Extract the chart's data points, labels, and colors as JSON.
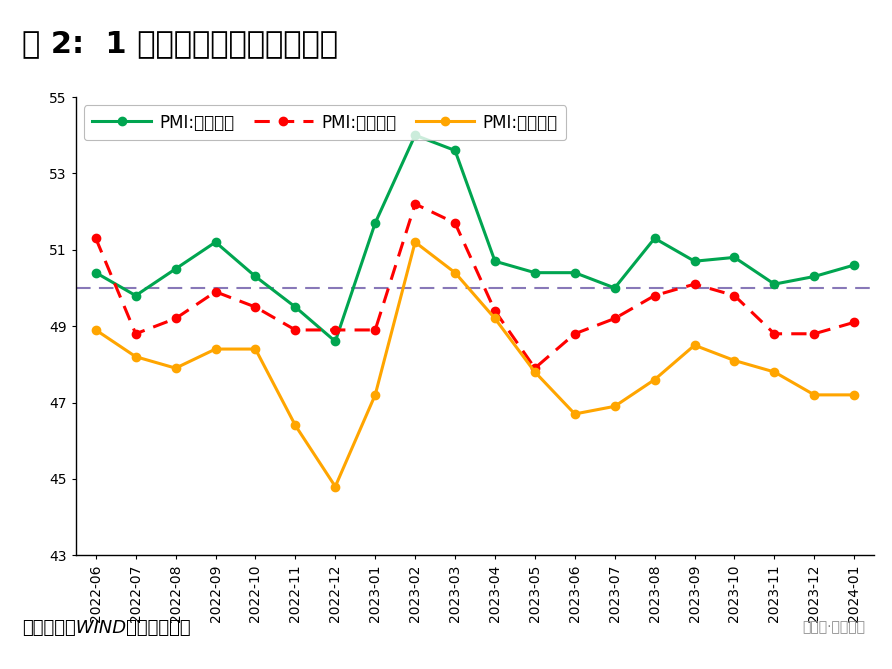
{
  "title": "图 2:  1 月大中小型企业延续分化",
  "source_text": "资料来源：WIND，财信研究院",
  "watermark": "公众号·明察宏观",
  "legend_large": "PMI:大型企业",
  "legend_medium": "PMI:中型企业",
  "legend_small": "PMI:小型企业",
  "x_labels": [
    "2022-06",
    "2022-07",
    "2022-08",
    "2022-09",
    "2022-10",
    "2022-11",
    "2022-12",
    "2023-01",
    "2023-02",
    "2023-03",
    "2023-04",
    "2023-05",
    "2023-06",
    "2023-07",
    "2023-08",
    "2023-09",
    "2023-10",
    "2023-11",
    "2023-12",
    "2024-01"
  ],
  "large_pmi": [
    50.4,
    49.8,
    50.5,
    51.2,
    50.3,
    49.5,
    48.6,
    51.7,
    54.0,
    53.6,
    50.7,
    50.4,
    50.4,
    50.0,
    51.3,
    50.7,
    50.8,
    50.1,
    50.3,
    50.6
  ],
  "medium_pmi": [
    51.3,
    48.8,
    49.2,
    49.9,
    49.5,
    48.9,
    48.9,
    48.9,
    52.2,
    51.7,
    49.4,
    47.9,
    48.8,
    49.2,
    49.8,
    50.1,
    49.8,
    48.8,
    48.8,
    49.1
  ],
  "small_pmi": [
    48.9,
    48.2,
    47.9,
    48.4,
    48.4,
    46.4,
    44.8,
    47.2,
    51.2,
    50.4,
    49.2,
    47.8,
    46.7,
    46.9,
    47.6,
    48.5,
    48.1,
    47.8,
    47.2,
    47.2
  ],
  "hline_y": 50.0,
  "ylim": [
    43,
    55
  ],
  "yticks": [
    43,
    45,
    47,
    49,
    51,
    53,
    55
  ],
  "large_color": "#00A550",
  "medium_color": "#FF0000",
  "small_color": "#FFA500",
  "hline_color": "#8878B8",
  "bg_color": "#FFFFFF",
  "plot_bg_color": "#FFFFFF",
  "title_fontsize": 22,
  "legend_fontsize": 12,
  "tick_fontsize": 10,
  "source_fontsize": 13
}
